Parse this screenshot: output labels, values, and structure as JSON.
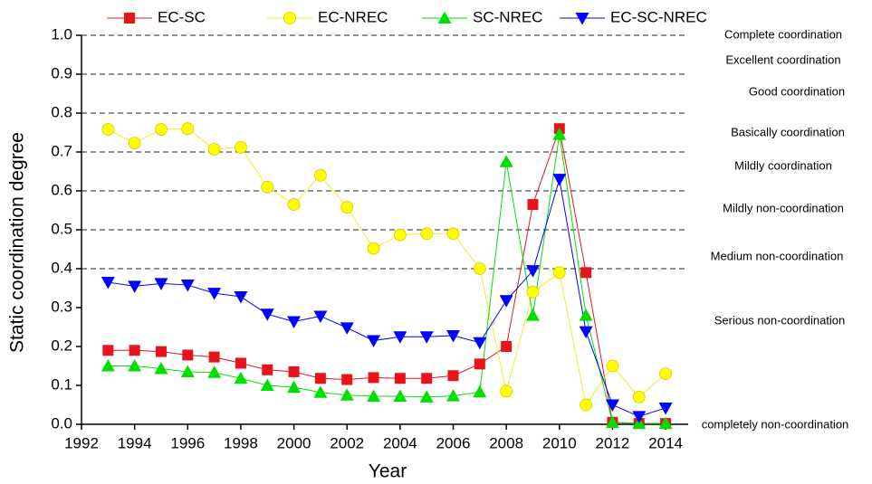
{
  "chart_data": {
    "type": "line",
    "x_label": "Year",
    "y_label": "Static coordination degree",
    "x": [
      1993,
      1994,
      1995,
      1996,
      1997,
      1998,
      1999,
      2000,
      2001,
      2002,
      2003,
      2004,
      2005,
      2006,
      2007,
      2008,
      2009,
      2010,
      2011,
      2012,
      2013,
      2014
    ],
    "series": [
      {
        "name": "EC-SC",
        "color": "#e8141c",
        "marker": "square",
        "values": [
          0.19,
          0.19,
          0.187,
          0.178,
          0.173,
          0.157,
          0.14,
          0.135,
          0.118,
          0.115,
          0.12,
          0.118,
          0.118,
          0.125,
          0.155,
          0.2,
          0.565,
          0.76,
          0.39,
          0.005,
          0.002,
          0.002
        ]
      },
      {
        "name": "EC-NREC",
        "color": "#ffff00",
        "marker": "circle",
        "values": [
          0.758,
          0.723,
          0.758,
          0.76,
          0.707,
          0.712,
          0.61,
          0.565,
          0.64,
          0.558,
          0.452,
          0.487,
          0.49,
          0.49,
          0.4,
          0.085,
          0.34,
          0.39,
          0.05,
          0.15,
          0.07,
          0.13
        ]
      },
      {
        "name": "SC-NREC",
        "color": "#00e000",
        "marker": "triangle-up",
        "values": [
          0.15,
          0.15,
          0.143,
          0.135,
          0.133,
          0.118,
          0.1,
          0.095,
          0.082,
          0.075,
          0.072,
          0.072,
          0.07,
          0.073,
          0.083,
          0.675,
          0.28,
          0.745,
          0.28,
          0.005,
          0.002,
          0.002
        ]
      },
      {
        "name": "EC-SC-NREC",
        "color": "#0000ff",
        "marker": "triangle-down",
        "values": [
          0.365,
          0.355,
          0.362,
          0.358,
          0.337,
          0.328,
          0.283,
          0.264,
          0.278,
          0.248,
          0.215,
          0.225,
          0.225,
          0.228,
          0.21,
          0.318,
          0.395,
          0.63,
          0.238,
          0.05,
          0.02,
          0.042
        ]
      }
    ],
    "xlim": [
      1992,
      2014.85
    ],
    "xticks": [
      1992,
      1994,
      1996,
      1998,
      2000,
      2002,
      2004,
      2006,
      2008,
      2010,
      2012,
      2014
    ],
    "ylim": [
      0,
      1
    ],
    "yticks": [
      {
        "value": 0,
        "label": "0.0"
      },
      {
        "value": 0.1,
        "label": "0.1"
      },
      {
        "value": 0.2,
        "label": "0.2"
      },
      {
        "value": 0.3,
        "label": "0.3"
      },
      {
        "value": 0.4,
        "label": "0.4"
      },
      {
        "value": 0.5,
        "label": "0.5"
      },
      {
        "value": 0.6,
        "label": "0.6"
      },
      {
        "value": 0.7,
        "label": "0.7"
      },
      {
        "value": 0.8,
        "label": "0.8"
      },
      {
        "value": 0.9,
        "label": "0.9"
      },
      {
        "value": 1,
        "label": "1.0"
      }
    ],
    "dashed_lines": [
      0.4,
      0.5,
      0.6,
      0.7,
      0.8,
      0.9,
      1
    ],
    "legend": "top",
    "annotations": [
      "Complete coordination",
      "Excellent coordination",
      "Good coordination",
      "Basically coordination",
      "Mildly coordination",
      "Mildly non-coordination",
      "Medium non-coordination",
      "Serious non-coordination",
      "completely non-coordination"
    ]
  }
}
